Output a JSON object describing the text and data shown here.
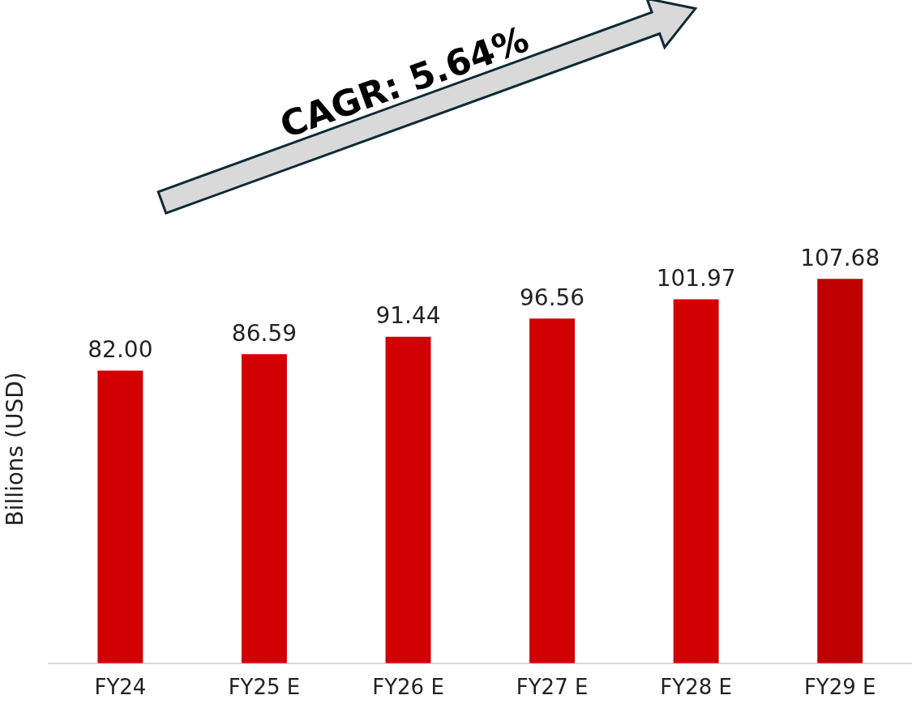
{
  "chart_data": {
    "type": "bar",
    "ylabel": "Billions (USD)",
    "categories": [
      "FY24",
      "FY25 E",
      "FY26 E",
      "FY27 E",
      "FY28 E",
      "FY29 E"
    ],
    "values": [
      82.0,
      86.59,
      91.44,
      96.56,
      101.97,
      107.68
    ],
    "value_labels": [
      "82.00",
      "86.59",
      "91.44",
      "96.56",
      "101.97",
      "107.68"
    ],
    "colors": [
      "#d20000",
      "#d20000",
      "#d20000",
      "#d20000",
      "#d20000",
      "#c00000"
    ],
    "tick_labels": "x",
    "grid": false,
    "legend": false,
    "annotations": [
      "CAGR: 5.64%"
    ]
  }
}
